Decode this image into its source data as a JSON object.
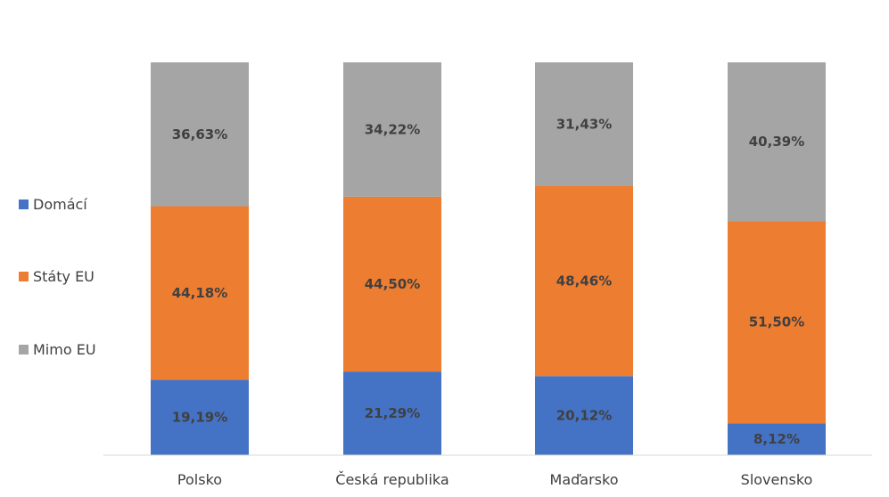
{
  "chart_data": {
    "type": "bar",
    "stacked": true,
    "percent": true,
    "title": "",
    "xlabel": "",
    "ylabel": "",
    "ylim": [
      0,
      100
    ],
    "grid": false,
    "legend_position": "left",
    "categories": [
      "Polsko",
      "Česká republika",
      "Maďarsko",
      "Slovensko"
    ],
    "series": [
      {
        "name": "Domácí",
        "color": "#4472c4",
        "values": [
          19.19,
          21.29,
          20.12,
          8.12
        ],
        "labels": [
          "19,19%",
          "21,29%",
          "20,12%",
          "8,12%"
        ]
      },
      {
        "name": "Státy EU",
        "color": "#ed7d31",
        "values": [
          44.18,
          44.5,
          48.46,
          51.5
        ],
        "labels": [
          "44,18%",
          "44,50%",
          "48,46%",
          "51,50%"
        ]
      },
      {
        "name": "Mimo EU",
        "color": "#a5a5a5",
        "values": [
          36.63,
          34.22,
          31.43,
          40.39
        ],
        "labels": [
          "36,63%",
          "34,22%",
          "31,43%",
          "40,39%"
        ]
      }
    ]
  }
}
